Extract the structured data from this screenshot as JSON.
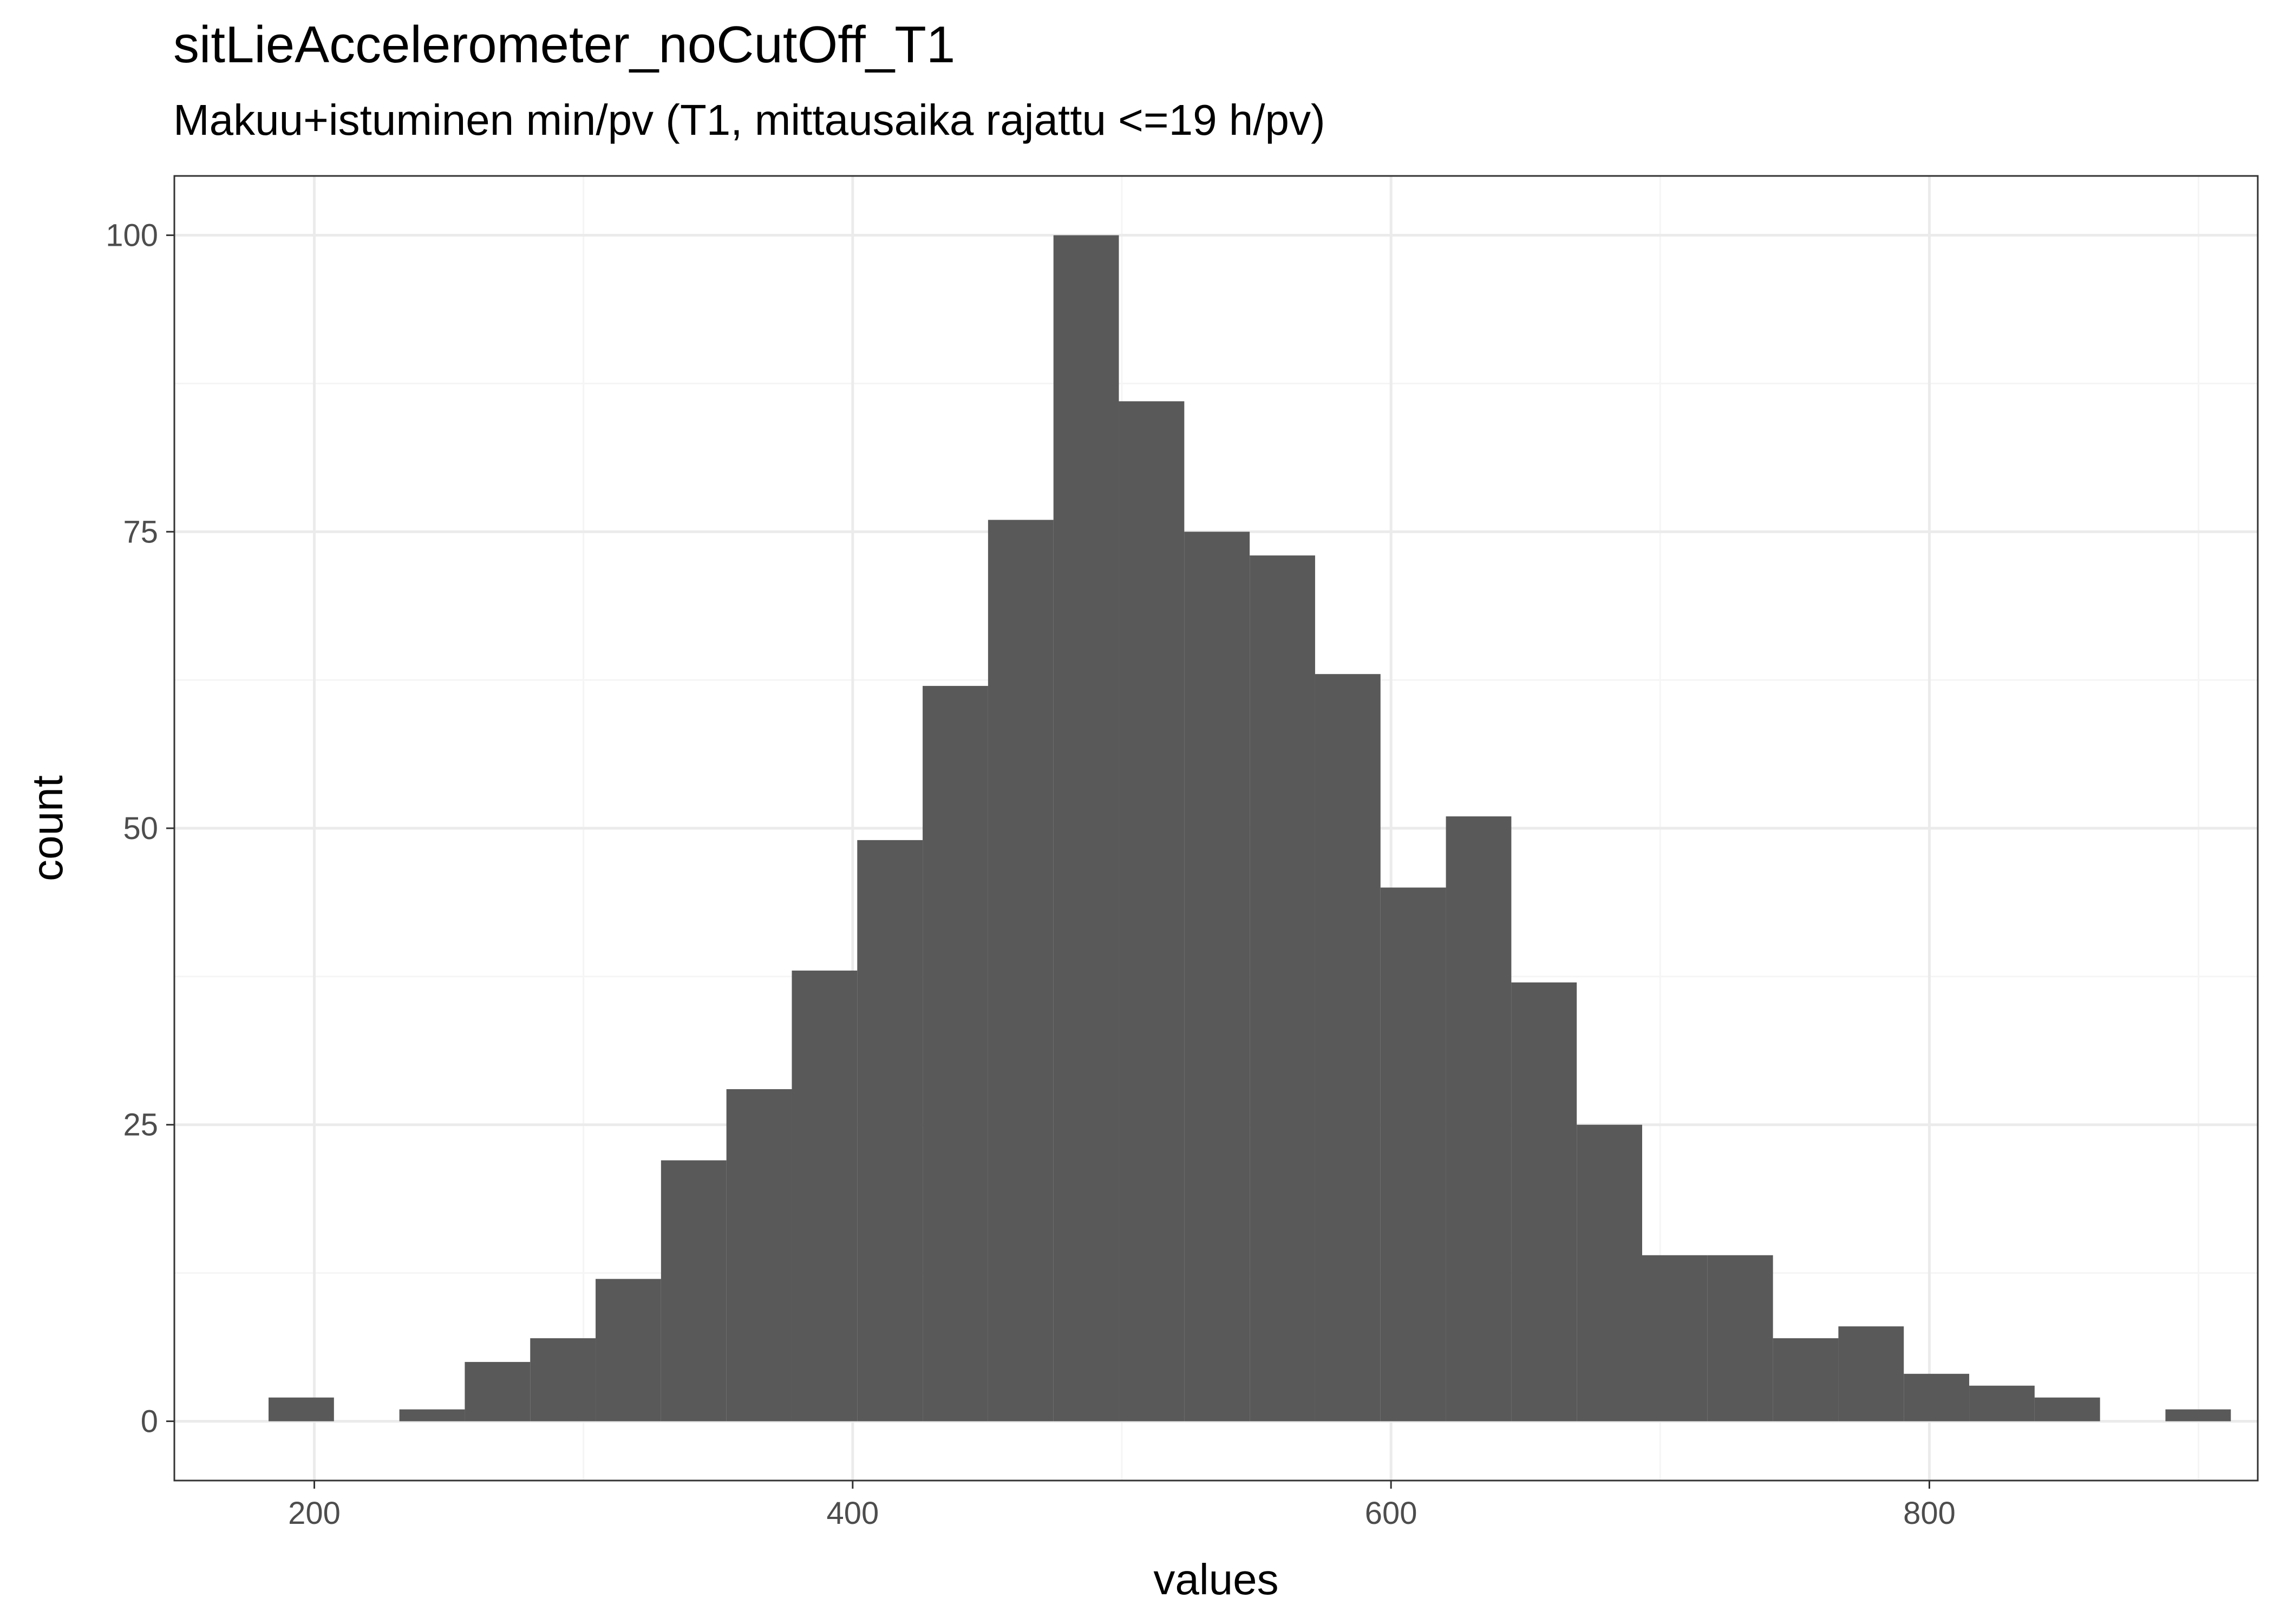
{
  "chart_data": {
    "type": "bar",
    "title": "sitLieAccelerometer_noCutOff_T1",
    "subtitle": "Makuu+istuminen min/pv (T1, mittausaika rajattu <=19 h/pv)",
    "xlabel": "values",
    "ylabel": "count",
    "xlim": [
      148,
      922
    ],
    "ylim": [
      -5,
      105
    ],
    "x_ticks": [
      200,
      400,
      600,
      800
    ],
    "y_ticks": [
      0,
      25,
      50,
      75,
      100
    ],
    "x_tick_labels": [
      "200",
      "400",
      "600",
      "800"
    ],
    "y_tick_labels": [
      "0",
      "25",
      "50",
      "75",
      "100"
    ],
    "grid": true,
    "bin_width": 24.3,
    "bins": [
      {
        "x0": 183.0,
        "x1": 207.3,
        "count": 2
      },
      {
        "x0": 207.3,
        "x1": 231.6,
        "count": 0
      },
      {
        "x0": 231.6,
        "x1": 255.9,
        "count": 1
      },
      {
        "x0": 255.9,
        "x1": 280.2,
        "count": 5
      },
      {
        "x0": 280.2,
        "x1": 304.5,
        "count": 7
      },
      {
        "x0": 304.5,
        "x1": 328.8,
        "count": 12
      },
      {
        "x0": 328.8,
        "x1": 353.1,
        "count": 22
      },
      {
        "x0": 353.1,
        "x1": 377.4,
        "count": 28
      },
      {
        "x0": 377.4,
        "x1": 401.7,
        "count": 38
      },
      {
        "x0": 401.7,
        "x1": 426.0,
        "count": 49
      },
      {
        "x0": 426.0,
        "x1": 450.3,
        "count": 62
      },
      {
        "x0": 450.3,
        "x1": 474.6,
        "count": 76
      },
      {
        "x0": 474.6,
        "x1": 498.9,
        "count": 100
      },
      {
        "x0": 498.9,
        "x1": 523.2,
        "count": 86
      },
      {
        "x0": 523.2,
        "x1": 547.5,
        "count": 75
      },
      {
        "x0": 547.5,
        "x1": 571.8,
        "count": 73
      },
      {
        "x0": 571.8,
        "x1": 596.1,
        "count": 63
      },
      {
        "x0": 596.1,
        "x1": 620.4,
        "count": 45
      },
      {
        "x0": 620.4,
        "x1": 644.7,
        "count": 51
      },
      {
        "x0": 644.7,
        "x1": 669.0,
        "count": 37
      },
      {
        "x0": 669.0,
        "x1": 693.3,
        "count": 25
      },
      {
        "x0": 693.3,
        "x1": 717.6,
        "count": 14
      },
      {
        "x0": 717.6,
        "x1": 741.9,
        "count": 14
      },
      {
        "x0": 741.9,
        "x1": 766.2,
        "count": 7
      },
      {
        "x0": 766.2,
        "x1": 790.5,
        "count": 8
      },
      {
        "x0": 790.5,
        "x1": 814.8,
        "count": 4
      },
      {
        "x0": 814.8,
        "x1": 839.1,
        "count": 3
      },
      {
        "x0": 839.1,
        "x1": 863.4,
        "count": 2
      },
      {
        "x0": 863.4,
        "x1": 887.7,
        "count": 0
      },
      {
        "x0": 887.7,
        "x1": 912.0,
        "count": 1
      }
    ],
    "colors": {
      "bar_fill": "#595959",
      "panel_background": "#ffffff",
      "grid_major": "#ebebeb",
      "grid_minor": "#f5f5f5",
      "panel_border": "#333333",
      "tick_label": "#4d4d4d"
    }
  }
}
